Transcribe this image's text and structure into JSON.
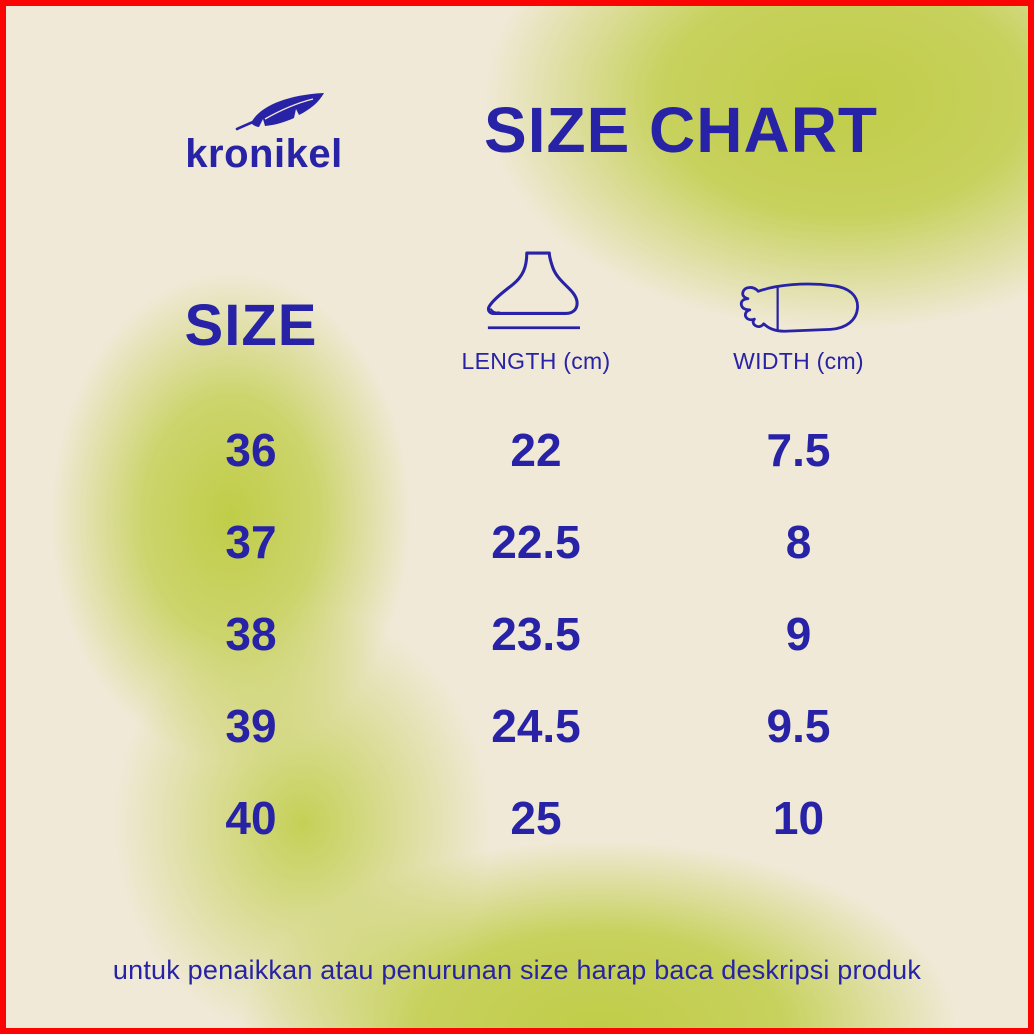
{
  "brand": {
    "name": "kronikel",
    "icon": "feather-icon"
  },
  "title": "SIZE CHART",
  "table": {
    "size_header": "SIZE",
    "columns": [
      {
        "label": "LENGTH (cm)",
        "icon": "foot-side-icon"
      },
      {
        "label": "WIDTH (cm)",
        "icon": "foot-top-icon"
      }
    ],
    "rows": [
      {
        "size": "36",
        "length": "22",
        "width": "7.5"
      },
      {
        "size": "37",
        "length": "22.5",
        "width": "8"
      },
      {
        "size": "38",
        "length": "23.5",
        "width": "9"
      },
      {
        "size": "39",
        "length": "24.5",
        "width": "9.5"
      },
      {
        "size": "40",
        "length": "25",
        "width": "10"
      }
    ]
  },
  "footer": {
    "note": "untuk penaikkan atau penurunan size harap baca deskripsi produk"
  },
  "colors": {
    "text_blue": "#2823a6",
    "border_red": "#fb0404",
    "background_cream": "#f0e9d7",
    "background_green": "#c0cd48"
  },
  "chart_data": {
    "type": "table",
    "title": "SIZE CHART",
    "columns": [
      "SIZE",
      "LENGTH (cm)",
      "WIDTH (cm)"
    ],
    "rows": [
      [
        36,
        22,
        7.5
      ],
      [
        37,
        22.5,
        8
      ],
      [
        38,
        23.5,
        9
      ],
      [
        39,
        24.5,
        9.5
      ],
      [
        40,
        25,
        10
      ]
    ],
    "footnote": "untuk penaikkan atau penurunan size harap baca deskripsi produk"
  }
}
